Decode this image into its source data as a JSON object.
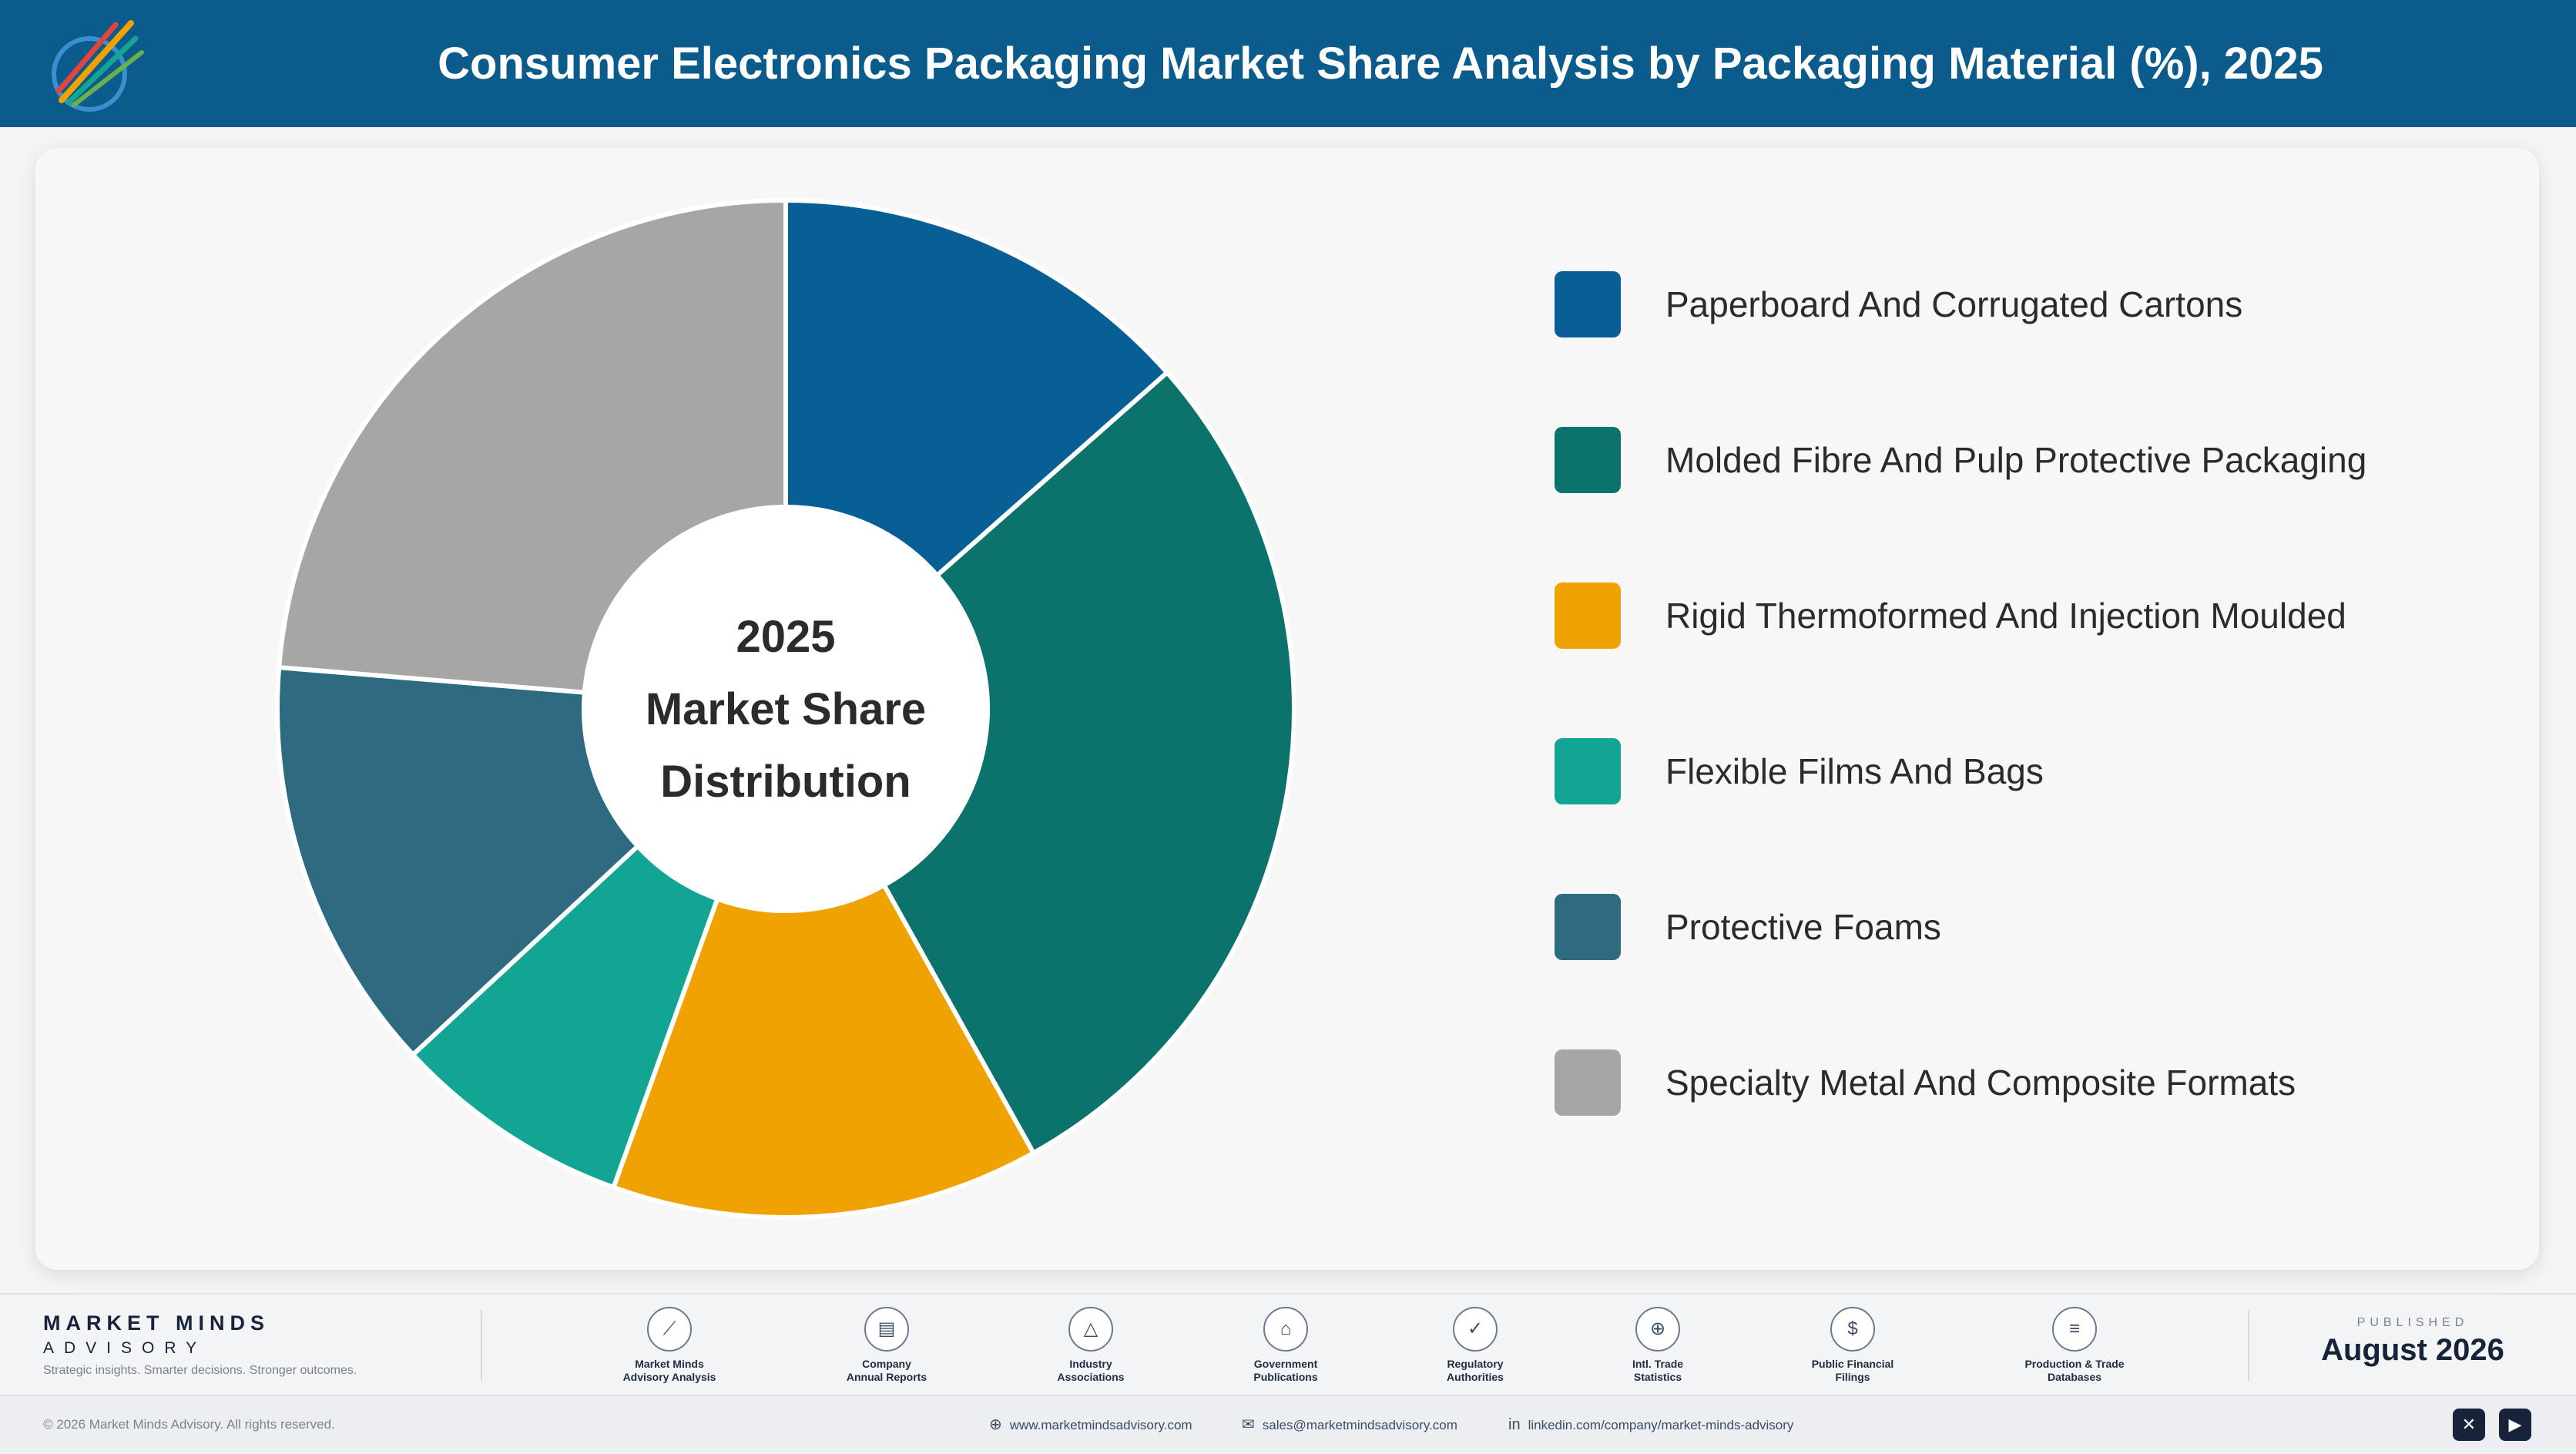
{
  "header": {
    "title": "Consumer Electronics Packaging Market Share Analysis by Packaging Material (%), 2025"
  },
  "chart_data": {
    "type": "pie",
    "variant": "donut",
    "title": "Consumer Electronics Packaging Market Share Analysis by Packaging Material (%), 2025",
    "center_label": [
      "2025",
      "Market Share",
      "Distribution"
    ],
    "legend_position": "right",
    "start_angle_deg": 0,
    "direction": "clockwise",
    "categories": [
      "Paperboard And Corrugated Cartons",
      "Molded Fibre And Pulp Protective Packaging",
      "Rigid Thermoformed And Injection Moulded",
      "Flexible Films And Bags",
      "Protective Foams",
      "Specialty Metal And Composite Formats"
    ],
    "values": [
      13.5,
      28.4,
      13.6,
      7.6,
      13.2,
      23.7
    ],
    "colors": [
      "#075f96",
      "#0c726c",
      "#f0a202",
      "#12a594",
      "#2e6b80",
      "#a6a6a6"
    ]
  },
  "footer": {
    "brand_name": "MARKET MINDS",
    "brand_sub": "ADVISORY",
    "tagline": "Strategic insights. Smarter decisions. Stronger outcomes.",
    "sources": [
      {
        "label": "Market Minds\nAdvisory Analysis",
        "icon": "trend-chart-icon",
        "glyph": "⟋"
      },
      {
        "label": "Company\nAnnual Reports",
        "icon": "document-icon",
        "glyph": "▤"
      },
      {
        "label": "Industry\nAssociations",
        "icon": "network-icon",
        "glyph": "△"
      },
      {
        "label": "Government\nPublications",
        "icon": "government-building-icon",
        "glyph": "⌂"
      },
      {
        "label": "Regulatory\nAuthorities",
        "icon": "shield-check-icon",
        "glyph": "✓"
      },
      {
        "label": "Intl. Trade\nStatistics",
        "icon": "globe-icon",
        "glyph": "⊕"
      },
      {
        "label": "Public Financial\nFilings",
        "icon": "coin-icon",
        "glyph": "$"
      },
      {
        "label": "Production & Trade\nDatabases",
        "icon": "database-icon",
        "glyph": "≡"
      }
    ],
    "published_label": "PUBLISHED",
    "published_date": "August 2026",
    "copyright": "© 2026 Market Minds Advisory. All rights reserved.",
    "website": "www.marketmindsadvisory.com",
    "email": "sales@marketmindsadvisory.com",
    "linkedin": "linkedin.com/company/market-minds-advisory",
    "social": [
      {
        "icon": "x-icon",
        "glyph": "✕"
      },
      {
        "icon": "youtube-icon",
        "glyph": "▶"
      }
    ]
  }
}
